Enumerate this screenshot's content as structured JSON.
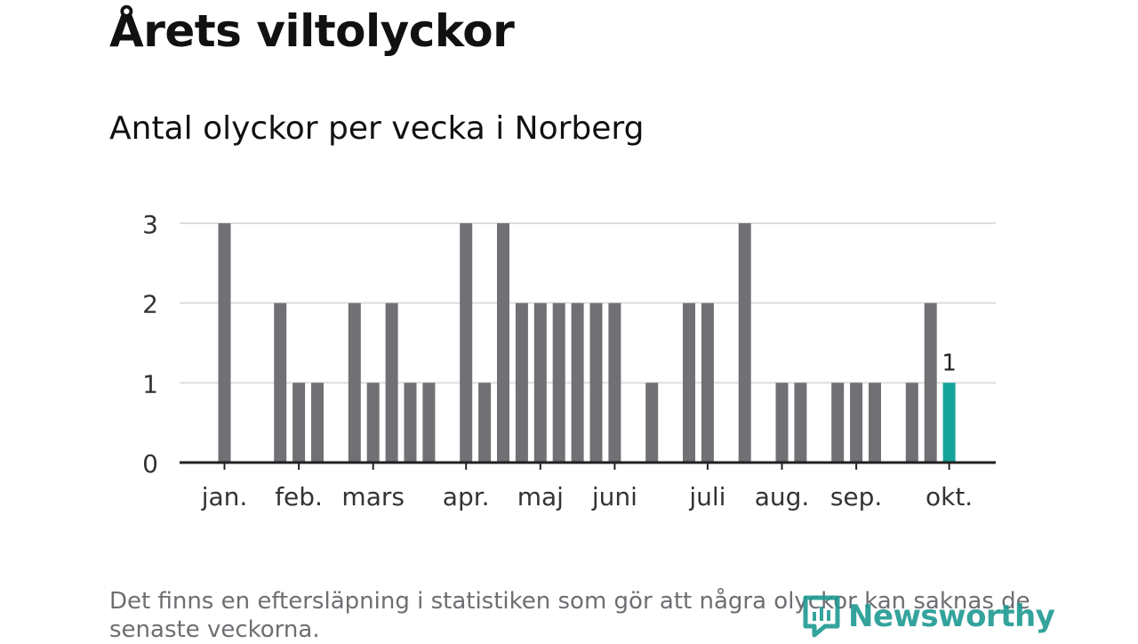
{
  "header": {
    "title": "Årets viltolyckor",
    "subtitle": "Antal olyckor per vecka i Norberg"
  },
  "footer": {
    "note": "Det finns en eftersläpning i statistiken som gör att några olyckor kan saknas de senaste veckorna.",
    "logo_text": "Newsworthy"
  },
  "colors": {
    "bar": "#707075",
    "highlight": "#14a39a",
    "grid": "#dddddd",
    "axis": "#222222",
    "logo": "#1e9a92"
  },
  "chart_data": {
    "type": "bar",
    "title": "",
    "xlabel": "",
    "ylabel": "",
    "ylim": [
      0,
      3
    ],
    "yticks": [
      0,
      1,
      2,
      3
    ],
    "grid": true,
    "x": [
      1,
      2,
      3,
      4,
      5,
      6,
      7,
      8,
      9,
      10,
      11,
      12,
      13,
      14,
      15,
      16,
      17,
      18,
      19,
      20,
      21,
      22,
      23,
      24,
      25,
      26,
      27,
      28,
      29,
      30,
      31,
      32,
      33,
      34,
      35,
      36,
      37,
      38,
      39,
      40,
      41
    ],
    "values": [
      3,
      0,
      0,
      2,
      1,
      1,
      0,
      2,
      1,
      2,
      1,
      1,
      0,
      3,
      1,
      3,
      2,
      2,
      2,
      2,
      2,
      2,
      0,
      1,
      0,
      2,
      2,
      0,
      3,
      0,
      1,
      1,
      0,
      1,
      1,
      1,
      0,
      1,
      2,
      1,
      null
    ],
    "highlight_index": 39,
    "highlight_label": "1",
    "month_labels": [
      {
        "label": "jan.",
        "position": 1
      },
      {
        "label": "feb.",
        "position": 5
      },
      {
        "label": "mars",
        "position": 9
      },
      {
        "label": "apr.",
        "position": 14
      },
      {
        "label": "maj",
        "position": 18
      },
      {
        "label": "juni",
        "position": 22
      },
      {
        "label": "juli",
        "position": 27
      },
      {
        "label": "aug.",
        "position": 31
      },
      {
        "label": "sep.",
        "position": 35
      },
      {
        "label": "okt.",
        "position": 40
      }
    ]
  }
}
